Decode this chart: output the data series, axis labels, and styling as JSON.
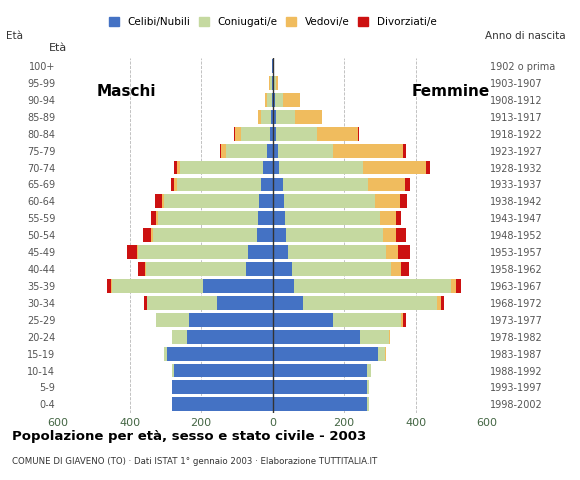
{
  "age_groups": [
    "0-4",
    "5-9",
    "10-14",
    "15-19",
    "20-24",
    "25-29",
    "30-34",
    "35-39",
    "40-44",
    "45-49",
    "50-54",
    "55-59",
    "60-64",
    "65-69",
    "70-74",
    "75-79",
    "80-84",
    "85-89",
    "90-94",
    "95-99",
    "100+"
  ],
  "birth_years": [
    "1998-2002",
    "1993-1997",
    "1988-1992",
    "1983-1987",
    "1978-1982",
    "1973-1977",
    "1968-1972",
    "1963-1967",
    "1958-1962",
    "1953-1957",
    "1948-1952",
    "1943-1947",
    "1938-1942",
    "1933-1937",
    "1928-1932",
    "1923-1927",
    "1918-1922",
    "1913-1917",
    "1908-1912",
    "1903-1907",
    "1902 o prima"
  ],
  "males": {
    "celibe": [
      280,
      280,
      275,
      295,
      240,
      235,
      155,
      195,
      75,
      70,
      45,
      40,
      38,
      32,
      28,
      15,
      8,
      5,
      3,
      2,
      1
    ],
    "coniugato": [
      2,
      2,
      5,
      10,
      40,
      90,
      195,
      255,
      280,
      305,
      290,
      280,
      265,
      235,
      230,
      115,
      80,
      28,
      14,
      5,
      2
    ],
    "vedovo": [
      0,
      0,
      0,
      0,
      0,
      0,
      1,
      2,
      3,
      4,
      5,
      5,
      7,
      8,
      9,
      14,
      18,
      9,
      5,
      2,
      0
    ],
    "divorziato": [
      0,
      0,
      0,
      0,
      0,
      2,
      8,
      10,
      17,
      27,
      22,
      15,
      20,
      10,
      10,
      2,
      2,
      0,
      0,
      0,
      0
    ]
  },
  "females": {
    "nubile": [
      265,
      265,
      265,
      295,
      245,
      170,
      85,
      60,
      55,
      42,
      38,
      35,
      32,
      28,
      18,
      14,
      10,
      10,
      7,
      4,
      2
    ],
    "coniugata": [
      5,
      5,
      10,
      20,
      80,
      190,
      375,
      440,
      275,
      275,
      270,
      265,
      255,
      238,
      235,
      155,
      115,
      52,
      22,
      5,
      2
    ],
    "vedova": [
      0,
      0,
      0,
      1,
      2,
      5,
      10,
      14,
      28,
      33,
      38,
      45,
      70,
      105,
      175,
      195,
      115,
      75,
      48,
      5,
      0
    ],
    "divorziata": [
      0,
      0,
      0,
      0,
      2,
      8,
      10,
      12,
      22,
      35,
      28,
      15,
      20,
      14,
      12,
      8,
      2,
      0,
      0,
      0,
      0
    ]
  },
  "colors": {
    "celibe": "#4472c4",
    "coniugato": "#c5d9a0",
    "vedovo": "#f0bc5e",
    "divorziato": "#cc1111"
  },
  "title": "Popolazione per età, sesso e stato civile - 2003",
  "subtitle": "COMUNE DI GIAVENO (TO) · Dati ISTAT 1° gennaio 2003 · Elaborazione TUTTITALIA.IT",
  "legend_labels": [
    "Celibi/Nubili",
    "Coniugati/e",
    "Vedovi/e",
    "Divorziati/e"
  ],
  "xlim": 600,
  "maschi_label": "Maschi",
  "femmine_label": "Femmine",
  "eta_label": "Età",
  "anno_label": "Anno di nascita",
  "bg_color": "#ffffff",
  "grid_color": "#999999"
}
